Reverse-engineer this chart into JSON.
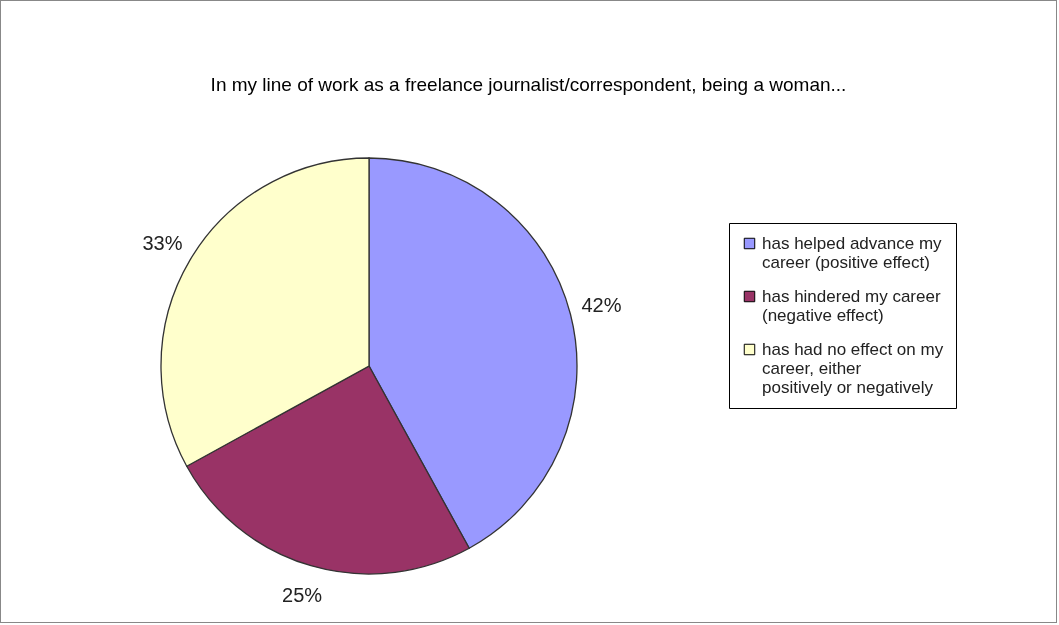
{
  "chart_data": {
    "type": "pie",
    "title": "In my line of work as a freelance journalist/correspondent, being a woman...",
    "categories": [
      "has helped advance my career (positive effect)",
      "has hindered my career (negative effect)",
      "has had no effect on my career, either positively or negatively"
    ],
    "values": [
      42,
      25,
      33
    ],
    "colors": [
      "#9999ff",
      "#993366",
      "#ffffcc"
    ],
    "value_labels": [
      "42%",
      "25%",
      "33%"
    ],
    "legend": "right"
  }
}
